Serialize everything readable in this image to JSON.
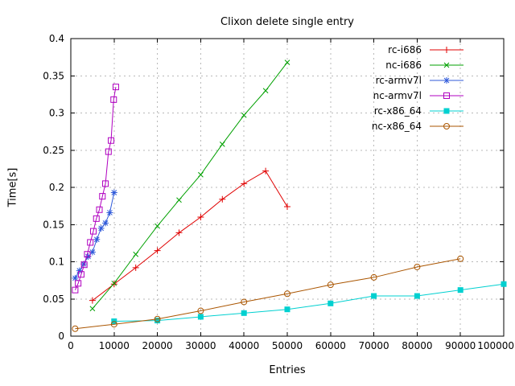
{
  "chart_data": {
    "type": "line",
    "title": "Clixon delete single entry",
    "xlabel": "Entries",
    "ylabel": "Time[s]",
    "xlim": [
      0,
      100000
    ],
    "ylim": [
      0,
      0.4
    ],
    "x_ticks": [
      0,
      10000,
      20000,
      30000,
      40000,
      50000,
      60000,
      70000,
      80000,
      90000,
      100000
    ],
    "x_tick_labels": [
      "0",
      "10000",
      "20000",
      "30000",
      "40000",
      "50000",
      "60000",
      "70000",
      "80000",
      "90000",
      "100000"
    ],
    "y_ticks": [
      0,
      0.05,
      0.1,
      0.15,
      0.2,
      0.25,
      0.3,
      0.35,
      0.4
    ],
    "y_tick_labels": [
      "0",
      "0.05",
      "0.1",
      "0.15",
      "0.2",
      "0.25",
      "0.3",
      "0.35",
      "0.4"
    ],
    "grid": true,
    "legend_position": "top-right-inside",
    "series": [
      {
        "name": "rc-i686",
        "color": "#e00000",
        "marker": "plus",
        "x": [
          5000,
          10000,
          15000,
          20000,
          25000,
          30000,
          35000,
          40000,
          45000,
          50000
        ],
        "y": [
          0.048,
          0.07,
          0.092,
          0.115,
          0.139,
          0.16,
          0.184,
          0.205,
          0.222,
          0.174
        ]
      },
      {
        "name": "nc-i686",
        "color": "#00a000",
        "marker": "cross",
        "x": [
          5000,
          10000,
          15000,
          20000,
          25000,
          30000,
          35000,
          40000,
          45000,
          50000
        ],
        "y": [
          0.037,
          0.071,
          0.11,
          0.148,
          0.183,
          0.217,
          0.258,
          0.297,
          0.33,
          0.368
        ]
      },
      {
        "name": "rc-armv7l",
        "color": "#2f5ada",
        "marker": "asterisk",
        "x": [
          1000,
          2000,
          3000,
          4000,
          5000,
          6000,
          7000,
          8000,
          9000,
          10000
        ],
        "y": [
          0.078,
          0.088,
          0.097,
          0.107,
          0.113,
          0.13,
          0.145,
          0.152,
          0.166,
          0.193
        ]
      },
      {
        "name": "nc-armv7l",
        "color": "#b000c0",
        "marker": "square-open",
        "x": [
          1000,
          1700,
          2400,
          3100,
          3800,
          4500,
          5200,
          5900,
          6600,
          7300,
          8000,
          8700,
          9300,
          9900,
          10400
        ],
        "y": [
          0.062,
          0.071,
          0.083,
          0.096,
          0.11,
          0.126,
          0.141,
          0.158,
          0.17,
          0.188,
          0.205,
          0.248,
          0.263,
          0.318,
          0.335
        ]
      },
      {
        "name": "rc-x86_64",
        "color": "#00d0d0",
        "marker": "square-filled",
        "x": [
          10000,
          20000,
          30000,
          40000,
          50000,
          60000,
          70000,
          80000,
          90000,
          100000
        ],
        "y": [
          0.02,
          0.021,
          0.026,
          0.031,
          0.036,
          0.044,
          0.054,
          0.054,
          0.062,
          0.07
        ]
      },
      {
        "name": "nc-x86_64",
        "color": "#aa5500",
        "marker": "circle-open",
        "x": [
          1000,
          10000,
          20000,
          30000,
          40000,
          50000,
          60000,
          70000,
          80000,
          90000
        ],
        "y": [
          0.01,
          0.016,
          0.023,
          0.034,
          0.046,
          0.057,
          0.069,
          0.079,
          0.093,
          0.104
        ]
      }
    ]
  },
  "colors": {
    "background": "#ffffff",
    "grid": "#b8b8b8",
    "axis": "#000000"
  }
}
